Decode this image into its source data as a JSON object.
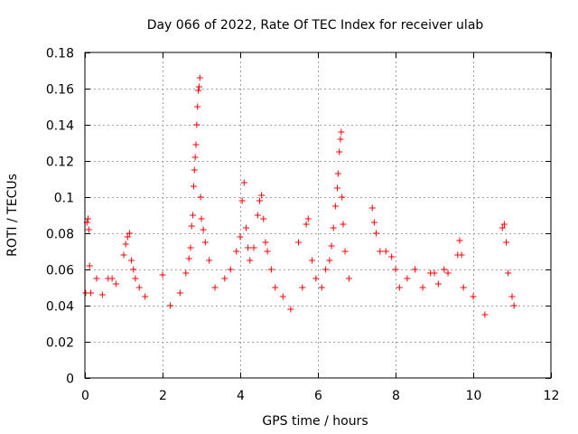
{
  "chart_data": {
    "type": "scatter",
    "title": "Day 066 of 2022, Rate Of TEC Index for receiver ulab",
    "xlabel": "GPS time / hours",
    "ylabel": "ROTI / TECUs",
    "xlim": [
      0,
      12
    ],
    "ylim": [
      0,
      0.18
    ],
    "x_ticks": [
      0,
      2,
      4,
      6,
      8,
      10,
      12
    ],
    "x_tick_labels": [
      "0",
      "2",
      "4",
      "6",
      "8",
      "10",
      "12"
    ],
    "y_ticks": [
      0,
      0.02,
      0.04,
      0.06,
      0.08,
      0.1,
      0.12,
      0.14,
      0.16,
      0.18
    ],
    "y_tick_labels": [
      "0",
      "0.02",
      "0.04",
      "0.06",
      "0.08",
      "0.1",
      "0.12",
      "0.14",
      "0.16",
      "0.18"
    ],
    "grid": true,
    "marker": "+",
    "series_color": "#ff0000",
    "data_gap_hours": [
      7.0,
      7.35
    ],
    "points": [
      [
        0.02,
        0.047
      ],
      [
        0.05,
        0.086
      ],
      [
        0.08,
        0.088
      ],
      [
        0.1,
        0.082
      ],
      [
        0.12,
        0.062
      ],
      [
        0.15,
        0.047
      ],
      [
        0.3,
        0.055
      ],
      [
        0.45,
        0.046
      ],
      [
        0.6,
        0.055
      ],
      [
        0.7,
        0.055
      ],
      [
        0.8,
        0.052
      ],
      [
        1.0,
        0.068
      ],
      [
        1.05,
        0.074
      ],
      [
        1.1,
        0.078
      ],
      [
        1.15,
        0.08
      ],
      [
        1.2,
        0.065
      ],
      [
        1.25,
        0.06
      ],
      [
        1.3,
        0.055
      ],
      [
        1.4,
        0.05
      ],
      [
        1.55,
        0.045
      ],
      [
        2.0,
        0.057
      ],
      [
        2.2,
        0.04
      ],
      [
        2.45,
        0.047
      ],
      [
        2.6,
        0.058
      ],
      [
        2.68,
        0.066
      ],
      [
        2.72,
        0.072
      ],
      [
        2.75,
        0.084
      ],
      [
        2.78,
        0.09
      ],
      [
        2.8,
        0.106
      ],
      [
        2.82,
        0.115
      ],
      [
        2.84,
        0.122
      ],
      [
        2.86,
        0.129
      ],
      [
        2.88,
        0.14
      ],
      [
        2.9,
        0.15
      ],
      [
        2.92,
        0.159
      ],
      [
        2.94,
        0.161
      ],
      [
        2.96,
        0.166
      ],
      [
        2.98,
        0.1
      ],
      [
        3.0,
        0.088
      ],
      [
        3.05,
        0.082
      ],
      [
        3.1,
        0.075
      ],
      [
        3.2,
        0.065
      ],
      [
        3.35,
        0.05
      ],
      [
        3.6,
        0.055
      ],
      [
        3.75,
        0.06
      ],
      [
        3.9,
        0.07
      ],
      [
        4.0,
        0.078
      ],
      [
        4.05,
        0.098
      ],
      [
        4.1,
        0.108
      ],
      [
        4.15,
        0.083
      ],
      [
        4.2,
        0.072
      ],
      [
        4.25,
        0.065
      ],
      [
        4.35,
        0.072
      ],
      [
        4.45,
        0.09
      ],
      [
        4.5,
        0.098
      ],
      [
        4.55,
        0.101
      ],
      [
        4.6,
        0.088
      ],
      [
        4.65,
        0.075
      ],
      [
        4.7,
        0.07
      ],
      [
        4.8,
        0.06
      ],
      [
        4.9,
        0.05
      ],
      [
        5.1,
        0.045
      ],
      [
        5.3,
        0.038
      ],
      [
        5.5,
        0.075
      ],
      [
        5.6,
        0.05
      ],
      [
        5.7,
        0.085
      ],
      [
        5.75,
        0.088
      ],
      [
        5.85,
        0.065
      ],
      [
        5.95,
        0.055
      ],
      [
        6.1,
        0.05
      ],
      [
        6.2,
        0.06
      ],
      [
        6.3,
        0.065
      ],
      [
        6.35,
        0.073
      ],
      [
        6.4,
        0.083
      ],
      [
        6.45,
        0.095
      ],
      [
        6.5,
        0.105
      ],
      [
        6.52,
        0.113
      ],
      [
        6.55,
        0.125
      ],
      [
        6.58,
        0.132
      ],
      [
        6.6,
        0.136
      ],
      [
        6.62,
        0.1
      ],
      [
        6.65,
        0.085
      ],
      [
        6.7,
        0.07
      ],
      [
        6.8,
        0.055
      ],
      [
        7.4,
        0.094
      ],
      [
        7.45,
        0.086
      ],
      [
        7.5,
        0.08
      ],
      [
        7.6,
        0.07
      ],
      [
        7.75,
        0.07
      ],
      [
        7.9,
        0.067
      ],
      [
        8.0,
        0.06
      ],
      [
        8.1,
        0.05
      ],
      [
        8.3,
        0.055
      ],
      [
        8.5,
        0.06
      ],
      [
        8.7,
        0.05
      ],
      [
        8.9,
        0.058
      ],
      [
        9.0,
        0.058
      ],
      [
        9.1,
        0.052
      ],
      [
        9.25,
        0.06
      ],
      [
        9.35,
        0.058
      ],
      [
        9.6,
        0.068
      ],
      [
        9.65,
        0.076
      ],
      [
        9.7,
        0.068
      ],
      [
        9.75,
        0.05
      ],
      [
        10.0,
        0.045
      ],
      [
        10.3,
        0.035
      ],
      [
        10.75,
        0.083
      ],
      [
        10.8,
        0.085
      ],
      [
        10.85,
        0.075
      ],
      [
        10.9,
        0.058
      ],
      [
        11.0,
        0.045
      ],
      [
        11.05,
        0.04
      ]
    ]
  }
}
